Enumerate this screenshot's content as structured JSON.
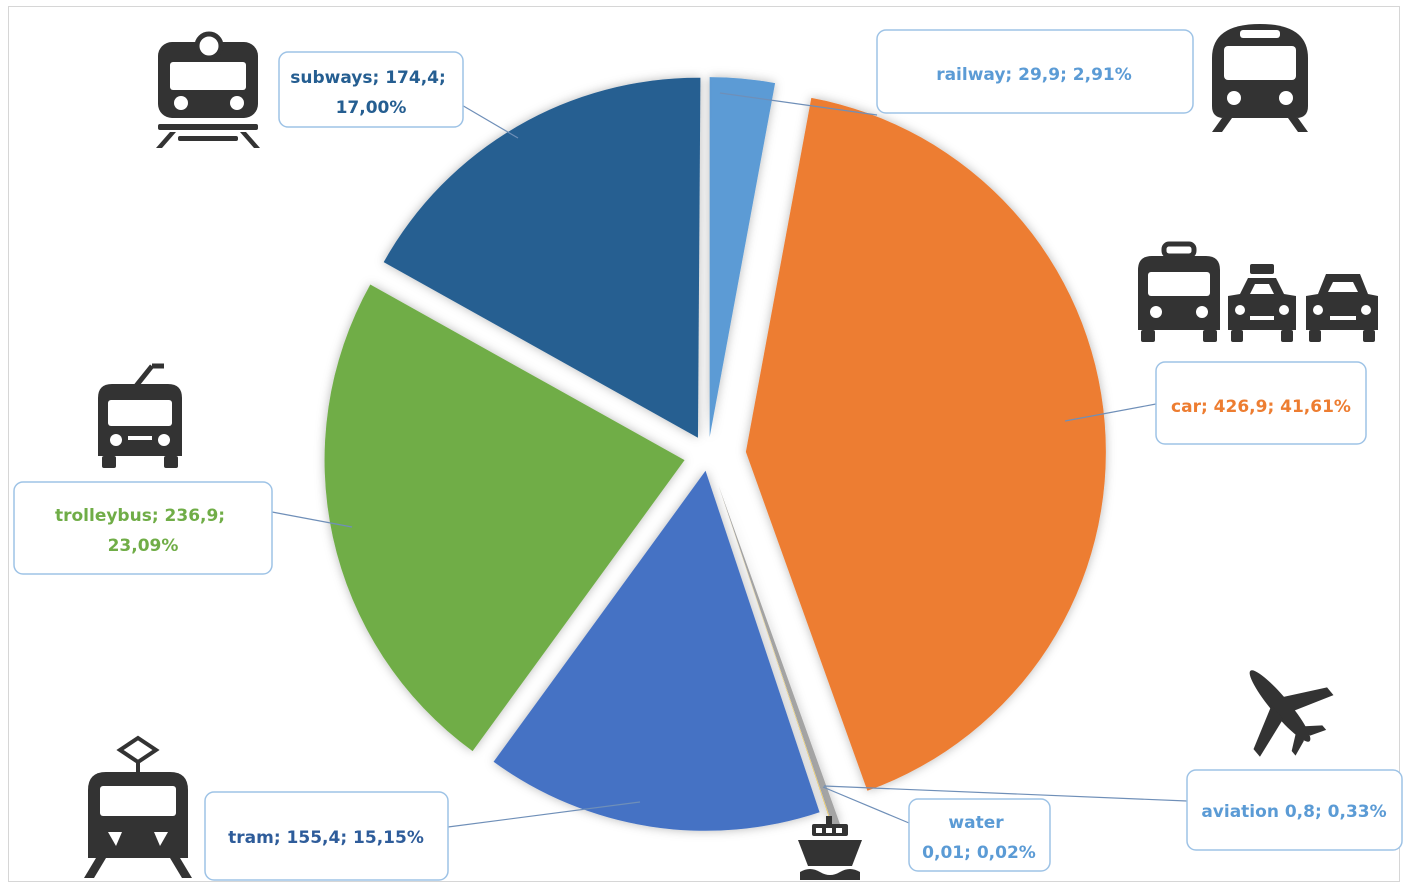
{
  "chart_data": {
    "type": "pie",
    "title": "",
    "legend": "none",
    "series": [
      {
        "name": "",
        "slices": [
          {
            "key": "railway",
            "label": "railway; 29,9; 2,91%",
            "value": 29.9,
            "percent": 2.91,
            "color": "#5b9bd5",
            "text_color": "#5b9bd5",
            "icon": "train-icon"
          },
          {
            "key": "car",
            "label": "car; 426,9; 41,61%",
            "value": 426.9,
            "percent": 41.61,
            "color": "#ed7d31",
            "text_color": "#ed7d31",
            "icon": "car-bus-taxi-icon"
          },
          {
            "key": "aviation",
            "label": "aviation 0,8; 0,33%",
            "value": 0.8,
            "percent": 0.33,
            "color": "#a5a5a5",
            "text_color": "#5b9bd5",
            "icon": "airplane-icon"
          },
          {
            "key": "water",
            "label": "water 0,01; 0,02%",
            "value": 0.01,
            "percent": 0.02,
            "color": "#ffc000",
            "text_color": "#5b9bd5",
            "icon": "ship-icon"
          },
          {
            "key": "tram",
            "label": "tram; 155,4; 15,15%",
            "value": 155.4,
            "percent": 15.15,
            "color": "#4472c4",
            "text_color": "#2e5c9a",
            "icon": "tram-icon"
          },
          {
            "key": "trolleybus",
            "label": "trolleybus; 236,9; 23,09%",
            "value": 236.9,
            "percent": 23.09,
            "color": "#70ad47",
            "text_color": "#70ad47",
            "icon": "trolleybus-icon"
          },
          {
            "key": "subways",
            "label": "subways; 174,4; 17,00%",
            "value": 174.4,
            "percent": 17.0,
            "color": "#255e91",
            "text_color": "#255e91",
            "icon": "subway-icon"
          }
        ]
      }
    ]
  }
}
